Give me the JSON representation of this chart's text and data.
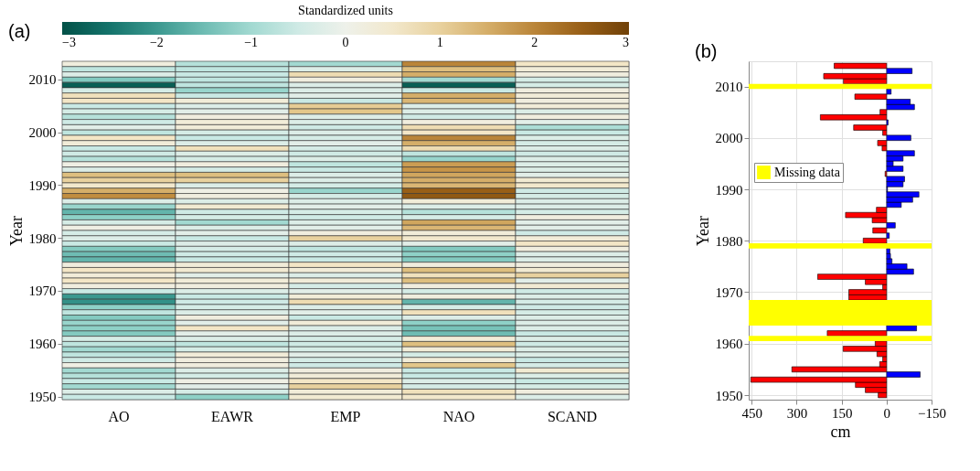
{
  "chart_data": [
    {
      "type": "heatmap",
      "title": "(a)",
      "ylabel": "Year",
      "clabel": "Standardized units",
      "categories": [
        "AO",
        "EAWR",
        "EMP",
        "NAO",
        "SCAND"
      ],
      "y_categories": [
        null,
        null,
        null,
        "2010",
        null,
        null,
        null,
        null,
        null,
        null,
        null,
        null,
        null,
        "2000",
        null,
        null,
        null,
        null,
        null,
        null,
        null,
        null,
        null,
        "1990",
        null,
        null,
        null,
        null,
        null,
        null,
        null,
        null,
        null,
        "1980",
        null,
        null,
        null,
        null,
        null,
        null,
        null,
        null,
        null,
        "1970",
        null,
        null,
        null,
        null,
        null,
        null,
        null,
        null,
        null,
        "1960",
        null,
        null,
        null,
        null,
        null,
        null,
        null,
        null,
        null,
        "1950"
      ],
      "cells": [
        [
          0.2,
          -0.8,
          -1.0,
          2.0,
          0.6
        ],
        [
          -0.7,
          -0.7,
          -0.3,
          1.3,
          0.3
        ],
        [
          -0.3,
          -0.6,
          0.8,
          1.5,
          0.2
        ],
        [
          -1.3,
          -0.7,
          0.2,
          -1.0,
          -0.4
        ],
        [
          -2.8,
          -0.7,
          -0.3,
          -2.8,
          -0.4
        ],
        [
          -0.4,
          -1.1,
          -0.3,
          -0.6,
          0.2
        ],
        [
          0.7,
          -0.6,
          -0.2,
          1.5,
          0.3
        ],
        [
          0.6,
          0.3,
          -0.6,
          1.4,
          0.2
        ],
        [
          -0.6,
          -0.3,
          1.1,
          -0.3,
          0.3
        ],
        [
          -0.4,
          -0.2,
          1.2,
          -0.3,
          -0.3
        ],
        [
          -0.8,
          0.2,
          -0.3,
          -0.5,
          0.2
        ],
        [
          -0.5,
          0.3,
          -0.3,
          0.2,
          -0.2
        ],
        [
          -0.2,
          0.3,
          -0.5,
          0.8,
          -0.9
        ],
        [
          -0.7,
          -0.4,
          -0.3,
          0.6,
          -0.6
        ],
        [
          0.6,
          -0.6,
          -0.4,
          2.0,
          -0.3
        ],
        [
          0.3,
          -0.3,
          -0.2,
          1.5,
          -0.4
        ],
        [
          -0.6,
          0.7,
          -0.4,
          0.8,
          -0.3
        ],
        [
          -0.5,
          -0.3,
          -0.5,
          -0.7,
          -0.5
        ],
        [
          -0.8,
          -0.4,
          -0.3,
          -1.1,
          -0.3
        ],
        [
          0.1,
          0.2,
          -0.7,
          1.7,
          -0.3
        ],
        [
          -0.3,
          -0.4,
          -0.6,
          1.8,
          -0.3
        ],
        [
          1.3,
          1.3,
          -0.3,
          1.6,
          -0.2
        ],
        [
          1.0,
          1.0,
          -0.3,
          1.5,
          0.4
        ],
        [
          0.5,
          -0.3,
          -0.4,
          1.4,
          0.5
        ],
        [
          1.5,
          0.1,
          -1.1,
          2.5,
          -0.5
        ],
        [
          1.9,
          0.2,
          -0.4,
          2.6,
          -0.4
        ],
        [
          -0.3,
          -0.3,
          -0.3,
          0.3,
          -0.3
        ],
        [
          -1.1,
          0.4,
          -0.2,
          -0.3,
          -0.3
        ],
        [
          -1.6,
          -0.5,
          -0.4,
          -0.8,
          -0.4
        ],
        [
          -1.2,
          -0.4,
          -0.5,
          -0.4,
          0.2
        ],
        [
          -0.4,
          -1.0,
          -0.3,
          1.6,
          -0.2
        ],
        [
          0.1,
          -0.3,
          -0.2,
          1.4,
          -0.2
        ],
        [
          -0.4,
          -0.2,
          0.2,
          0.3,
          -0.5
        ],
        [
          -0.3,
          -0.6,
          1.0,
          0.5,
          0.3
        ],
        [
          -0.6,
          -0.3,
          -0.3,
          -0.2,
          0.6
        ],
        [
          -1.3,
          -0.4,
          -0.7,
          -1.3,
          0.2
        ],
        [
          -1.5,
          -0.5,
          -0.5,
          -1.2,
          -0.3
        ],
        [
          -1.6,
          -0.6,
          -0.6,
          -1.3,
          -0.3
        ],
        [
          0.2,
          0.3,
          0.6,
          0.2,
          0.2
        ],
        [
          0.6,
          0.4,
          0.3,
          1.3,
          0.4
        ],
        [
          0.3,
          -0.2,
          -0.3,
          0.7,
          1.0
        ],
        [
          0.6,
          0.3,
          0.3,
          1.3,
          -0.2
        ],
        [
          0.2,
          0.2,
          -0.4,
          0.2,
          0.4
        ],
        [
          -0.6,
          -0.3,
          -0.2,
          -0.4,
          -0.5
        ],
        [
          -2.0,
          -0.6,
          0.3,
          0.2,
          -0.3
        ],
        [
          -2.1,
          -0.5,
          0.8,
          -1.6,
          -0.4
        ],
        [
          -1.2,
          -0.4,
          -0.3,
          -0.4,
          -0.5
        ],
        [
          -0.7,
          -0.3,
          -0.2,
          0.7,
          -0.4
        ],
        [
          -1.3,
          0.2,
          -0.6,
          -0.3,
          -0.3
        ],
        [
          -1.1,
          -0.2,
          0.3,
          -1.2,
          -0.3
        ],
        [
          -1.2,
          0.6,
          -0.3,
          -1.4,
          -0.3
        ],
        [
          -1.3,
          -0.2,
          -0.3,
          -1.5,
          -0.6
        ],
        [
          -0.4,
          -0.3,
          -0.4,
          0.3,
          -0.3
        ],
        [
          -0.7,
          -0.7,
          -0.5,
          1.3,
          -0.5
        ],
        [
          -1.0,
          -0.4,
          -0.4,
          0.3,
          -0.3
        ],
        [
          -0.7,
          0.3,
          -0.2,
          -0.4,
          -0.3
        ],
        [
          -0.5,
          0.2,
          -0.4,
          0.3,
          -0.6
        ],
        [
          0.1,
          0.2,
          -0.5,
          1.2,
          -0.4
        ],
        [
          -1.0,
          -0.3,
          0.2,
          -0.6,
          0.4
        ],
        [
          -0.8,
          -0.4,
          0.3,
          -0.6,
          -0.3
        ],
        [
          -0.6,
          0.1,
          0.6,
          -0.3,
          -0.6
        ],
        [
          -1.0,
          -0.2,
          1.0,
          -0.4,
          -0.4
        ],
        [
          -0.3,
          -0.4,
          0.3,
          0.7,
          0.2
        ],
        [
          -0.6,
          -1.2,
          0.4,
          0.5,
          -0.3
        ]
      ],
      "clim": [
        -3,
        3
      ],
      "cticks": [
        -3,
        -2,
        -1,
        0,
        1,
        2,
        3
      ]
    },
    {
      "type": "bar",
      "title": "(b)",
      "xlabel": "cm",
      "ylabel": "Year",
      "orientation": "horizontal",
      "x": [
        1950,
        1951,
        1952,
        1953,
        1954,
        1955,
        1956,
        1957,
        1958,
        1959,
        1960,
        1961,
        1962,
        1963,
        1964,
        1965,
        1966,
        1967,
        1968,
        1969,
        1970,
        1971,
        1972,
        1973,
        1974,
        1975,
        1976,
        1977,
        1978,
        1979,
        1980,
        1981,
        1982,
        1983,
        1984,
        1985,
        1986,
        1987,
        1988,
        1989,
        1990,
        1991,
        1992,
        1993,
        1994,
        1995,
        1996,
        1997,
        1998,
        1999,
        2000,
        2001,
        2002,
        2003,
        2004,
        2005,
        2006,
        2007,
        2008,
        2009,
        2010,
        2011,
        2012,
        2013,
        2014
      ],
      "values": [
        28,
        71,
        104,
        453,
        -112,
        316,
        23,
        13,
        32,
        145,
        38,
        null,
        198,
        -100,
        null,
        null,
        null,
        null,
        null,
        126,
        126,
        13,
        71,
        230,
        -90,
        -68,
        -18,
        -13,
        -11,
        null,
        78,
        -9,
        46,
        -29,
        48,
        137,
        34,
        -49,
        -87,
        -108,
        -3,
        -55,
        -60,
        5,
        -55,
        -22,
        -55,
        -93,
        15,
        30,
        -81,
        13,
        110,
        -5,
        221,
        22,
        -93,
        -79,
        106,
        -15,
        null,
        144,
        210,
        -85,
        175
      ],
      "colors": [
        "#ff0000",
        "#ff0000",
        "#ff0000",
        "#ff0000",
        "#0000ff",
        "#ff0000",
        "#ff0000",
        "#ff0000",
        "#ff0000",
        "#ff0000",
        "#ff0000",
        null,
        "#ff0000",
        "#0000ff",
        null,
        null,
        null,
        null,
        null,
        "#ff0000",
        "#ff0000",
        "#ff0000",
        "#ff0000",
        "#ff0000",
        "#0000ff",
        "#0000ff",
        "#0000ff",
        "#0000ff",
        "#0000ff",
        null,
        "#ff0000",
        "#0000ff",
        "#ff0000",
        "#0000ff",
        "#ff0000",
        "#ff0000",
        "#ff0000",
        "#0000ff",
        "#0000ff",
        "#0000ff",
        "#0000ff",
        "#0000ff",
        "#0000ff",
        "#ff0000",
        "#0000ff",
        "#0000ff",
        "#0000ff",
        "#0000ff",
        "#ff0000",
        "#ff0000",
        "#0000ff",
        "#ff0000",
        "#ff0000",
        "#0000ff",
        "#ff0000",
        "#ff0000",
        "#0000ff",
        "#0000ff",
        "#ff0000",
        "#0000ff",
        null,
        "#ff0000",
        "#ff0000",
        "#0000ff",
        "#ff0000"
      ],
      "xlim": [
        460,
        -150
      ],
      "xticks": [
        450,
        300,
        150,
        0,
        -150
      ],
      "ylim": [
        1950,
        2014
      ],
      "yticks": [
        1950,
        1960,
        1970,
        1980,
        1990,
        2000,
        2010
      ],
      "bands": [
        {
          "axis": "y",
          "from": 1960.5,
          "to": 1961.5,
          "label": "Missing data",
          "color": "#ffff00"
        },
        {
          "axis": "y",
          "from": 1963.5,
          "to": 1968.5,
          "color": "#ffff00"
        },
        {
          "axis": "y",
          "from": 1978.5,
          "to": 1979.5,
          "color": "#ffff00"
        },
        {
          "axis": "y",
          "from": 2009.5,
          "to": 2010.5,
          "color": "#ffff00"
        }
      ],
      "legend": "left",
      "grid": true
    }
  ]
}
